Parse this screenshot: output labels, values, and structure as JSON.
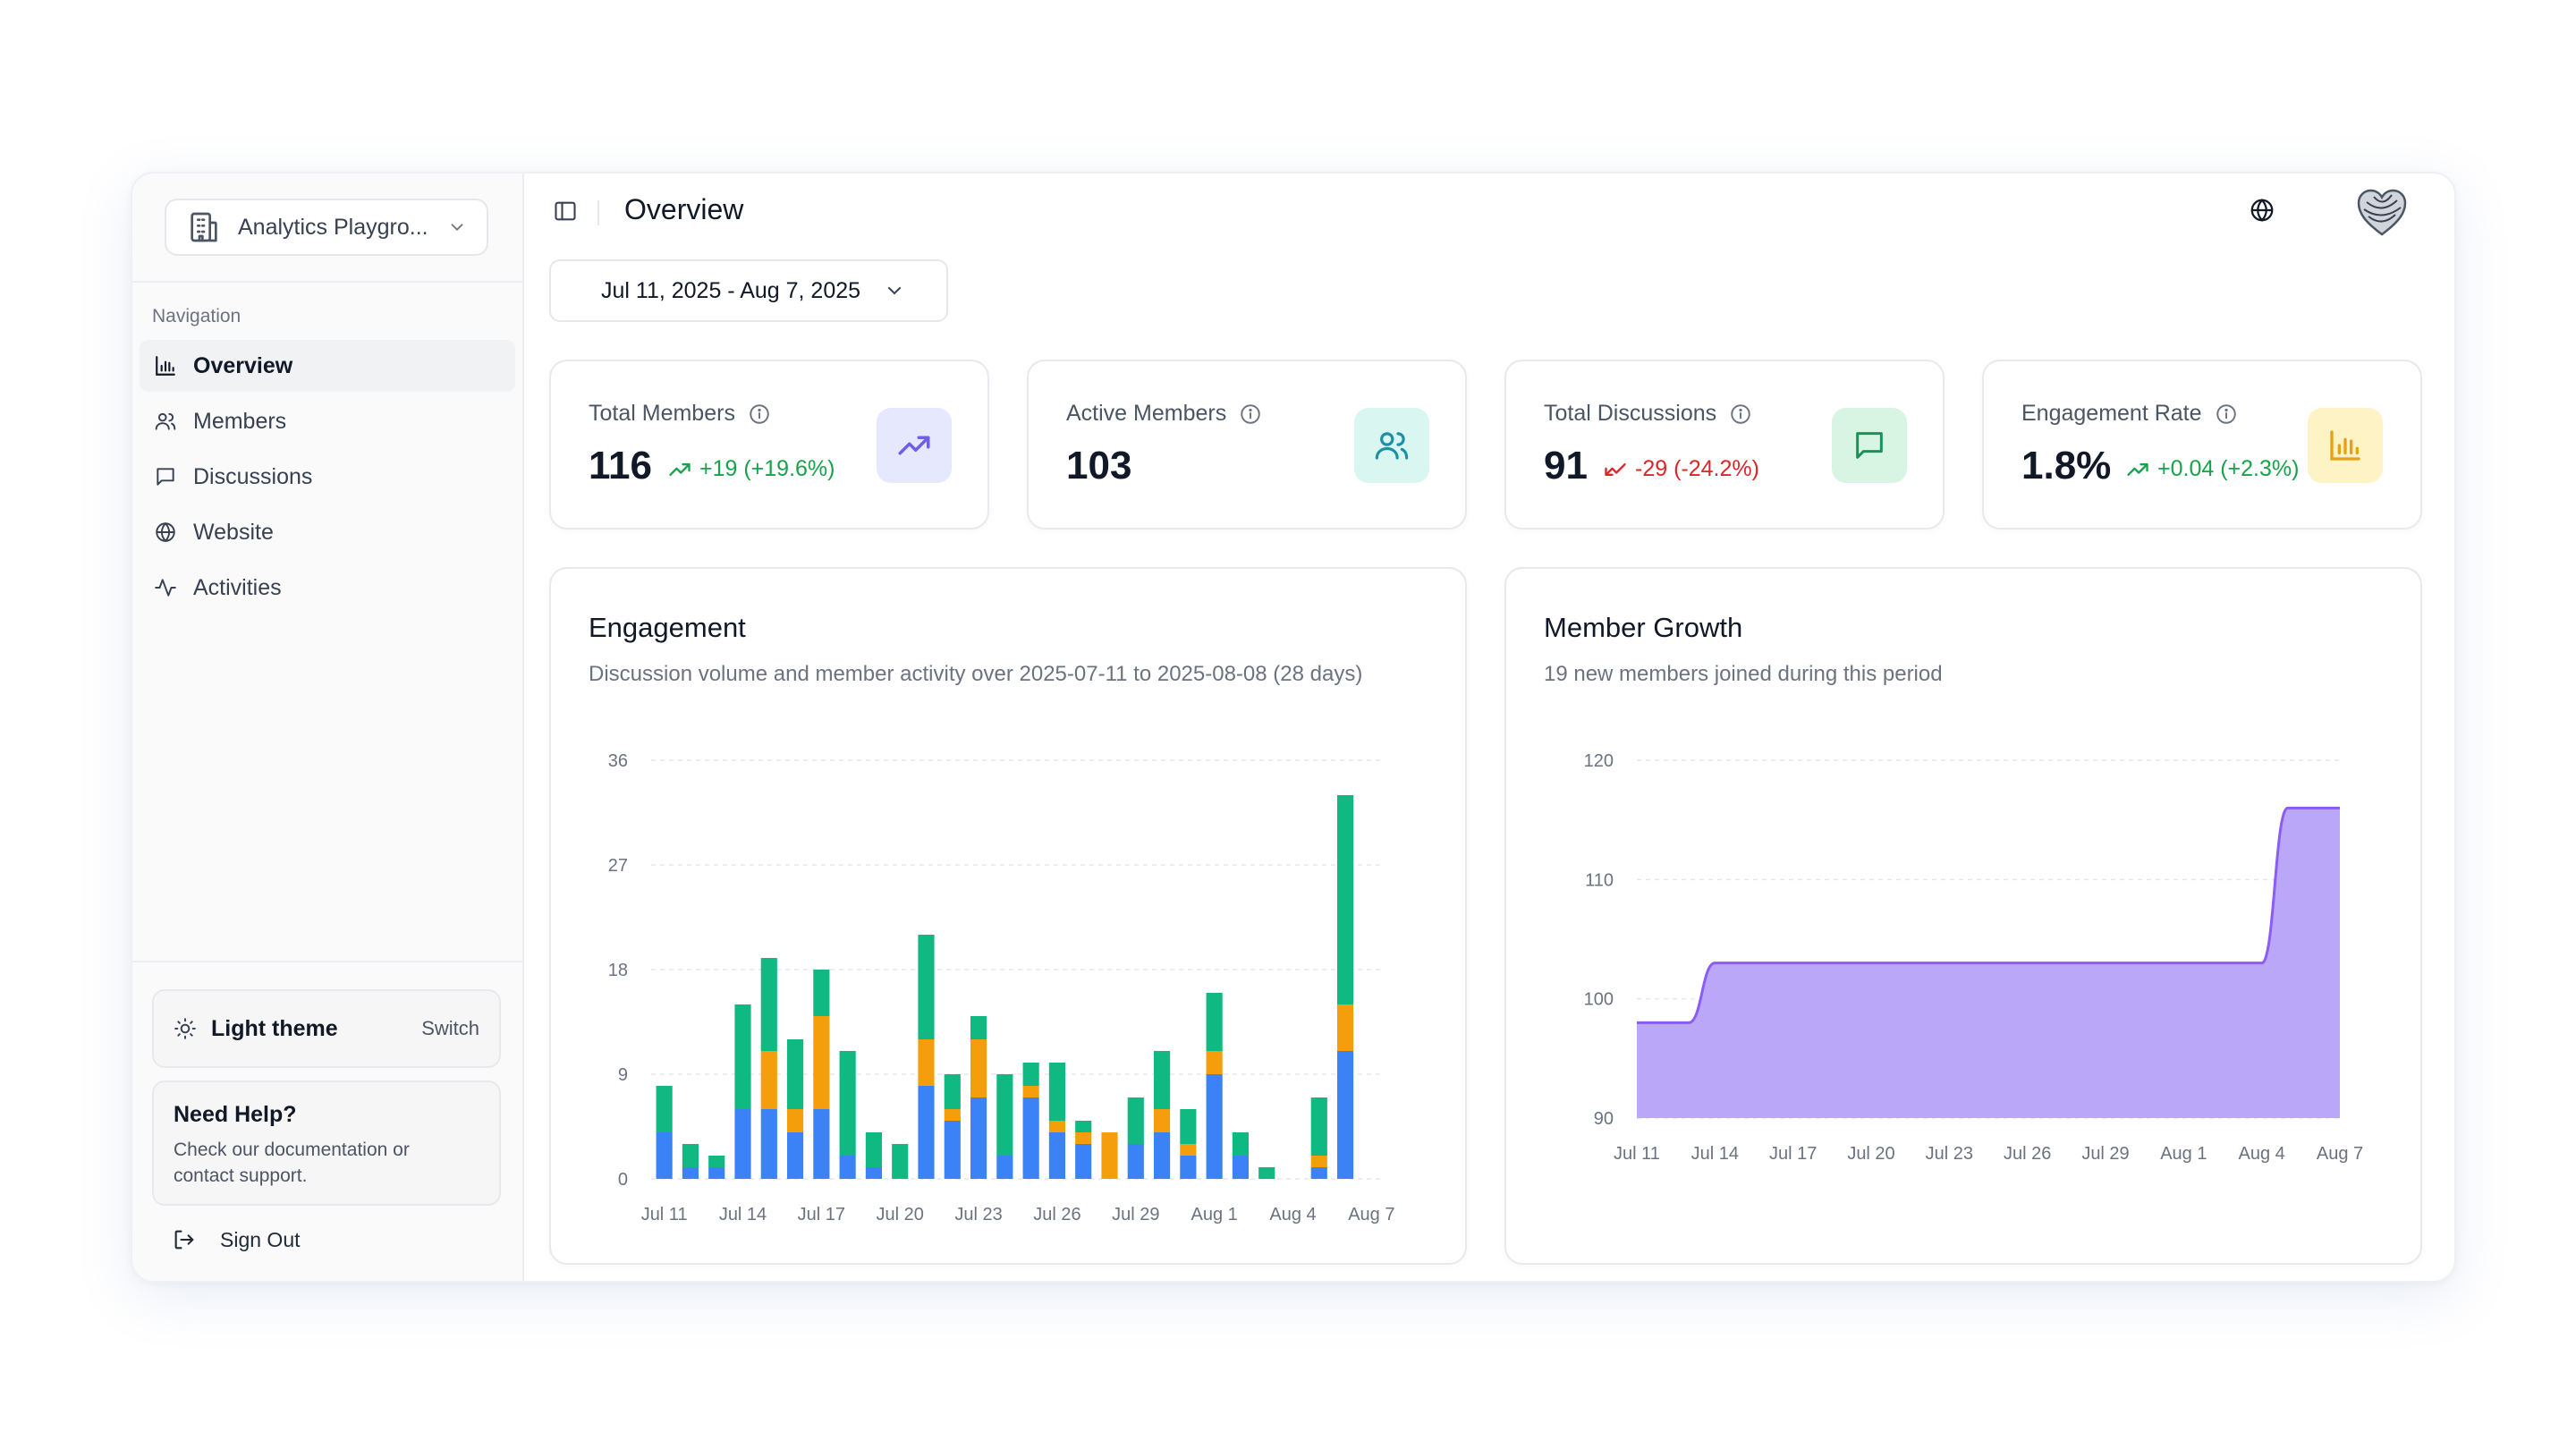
{
  "sidebar": {
    "workspace_name": "Analytics Playgro...",
    "nav_heading": "Navigation",
    "items": [
      {
        "label": "Overview",
        "icon": "bar-chart-icon",
        "active": true
      },
      {
        "label": "Members",
        "icon": "users-icon",
        "active": false
      },
      {
        "label": "Discussions",
        "icon": "message-square-icon",
        "active": false
      },
      {
        "label": "Website",
        "icon": "globe-icon",
        "active": false
      },
      {
        "label": "Activities",
        "icon": "activity-icon",
        "active": false
      }
    ],
    "theme": {
      "label": "Light theme",
      "switch_label": "Switch"
    },
    "help": {
      "title": "Need Help?",
      "text": "Check our documentation or contact support."
    },
    "signout_label": "Sign Out"
  },
  "header": {
    "title": "Overview"
  },
  "date_range": "Jul 11, 2025 - Aug 7, 2025",
  "stats": [
    {
      "label": "Total Members",
      "value": "116",
      "delta": "+19 (+19.6%)",
      "trend": "up",
      "icon": "trending-up-icon",
      "icon_bg": "#e6e8fd",
      "icon_color": "#6d5fe8"
    },
    {
      "label": "Active Members",
      "value": "103",
      "delta": "",
      "trend": "none",
      "icon": "users-icon",
      "icon_bg": "#d9f6f1",
      "icon_color": "#1f8fa6"
    },
    {
      "label": "Total Discussions",
      "value": "91",
      "delta": "-29 (-24.2%)",
      "trend": "down",
      "icon": "message-square-icon",
      "icon_bg": "#d8f5e3",
      "icon_color": "#15935a"
    },
    {
      "label": "Engagement Rate",
      "value": "1.8%",
      "delta": "+0.04 (+2.3%)",
      "trend": "up",
      "icon": "bar-chart-icon",
      "icon_bg": "#fdf3c4",
      "icon_color": "#e6a117"
    }
  ],
  "colors": {
    "up": "#16a34a",
    "down": "#dc2626",
    "blue": "#3b82f6",
    "orange": "#f59e0b",
    "green": "#10b981",
    "purple_fill": "#b7a2f8",
    "purple_line": "#8b5cf6"
  },
  "engagement": {
    "title": "Engagement",
    "subtitle": "Discussion volume and member activity over 2025-07-11 to 2025-08-08 (28 days)"
  },
  "growth": {
    "title": "Member Growth",
    "subtitle": "19 new members joined during this period"
  },
  "chart_data": [
    {
      "type": "bar",
      "stacked": true,
      "title": "Engagement",
      "ylim": [
        0,
        36
      ],
      "yticks": [
        0,
        9,
        18,
        27,
        36
      ],
      "xtick_labels": [
        "Jul 11",
        "Jul 14",
        "Jul 17",
        "Jul 20",
        "Jul 23",
        "Jul 26",
        "Jul 29",
        "Aug 1",
        "Aug 4",
        "Aug 7"
      ],
      "xtick_index": [
        0,
        3,
        6,
        9,
        12,
        15,
        18,
        21,
        24,
        27
      ],
      "categories": [
        "Jul 11",
        "Jul 12",
        "Jul 13",
        "Jul 14",
        "Jul 15",
        "Jul 16",
        "Jul 17",
        "Jul 18",
        "Jul 19",
        "Jul 20",
        "Jul 21",
        "Jul 22",
        "Jul 23",
        "Jul 24",
        "Jul 25",
        "Jul 26",
        "Jul 27",
        "Jul 28",
        "Jul 29",
        "Jul 30",
        "Jul 31",
        "Aug 1",
        "Aug 2",
        "Aug 3",
        "Aug 4",
        "Aug 5",
        "Aug 6",
        "Aug 7"
      ],
      "series": [
        {
          "color": "#3b82f6",
          "values": [
            4,
            1,
            1,
            6,
            6,
            4,
            6,
            2,
            1,
            0,
            8,
            5,
            7,
            2,
            7,
            4,
            3,
            0,
            3,
            4,
            2,
            9,
            2,
            0,
            0,
            1,
            11,
            0
          ]
        },
        {
          "color": "#f59e0b",
          "values": [
            0,
            0,
            0,
            0,
            5,
            2,
            8,
            0,
            0,
            0,
            4,
            1,
            5,
            0,
            1,
            1,
            1,
            4,
            0,
            2,
            1,
            2,
            0,
            0,
            0,
            1,
            4,
            0
          ]
        },
        {
          "color": "#10b981",
          "values": [
            4,
            2,
            1,
            9,
            8,
            6,
            4,
            9,
            3,
            3,
            9,
            3,
            2,
            7,
            2,
            5,
            1,
            0,
            4,
            5,
            3,
            5,
            2,
            1,
            0,
            5,
            18,
            0
          ]
        }
      ]
    },
    {
      "type": "area",
      "title": "Member Growth",
      "ylim": [
        90,
        120
      ],
      "yticks": [
        90,
        100,
        110,
        120
      ],
      "xtick_labels": [
        "Jul 11",
        "Jul 14",
        "Jul 17",
        "Jul 20",
        "Jul 23",
        "Jul 26",
        "Jul 29",
        "Aug 1",
        "Aug 4",
        "Aug 7"
      ],
      "xtick_index": [
        0,
        3,
        6,
        9,
        12,
        15,
        18,
        21,
        24,
        27
      ],
      "categories": [
        "Jul 11",
        "Jul 12",
        "Jul 13",
        "Jul 14",
        "Jul 15",
        "Jul 16",
        "Jul 17",
        "Jul 18",
        "Jul 19",
        "Jul 20",
        "Jul 21",
        "Jul 22",
        "Jul 23",
        "Jul 24",
        "Jul 25",
        "Jul 26",
        "Jul 27",
        "Jul 28",
        "Jul 29",
        "Jul 30",
        "Jul 31",
        "Aug 1",
        "Aug 2",
        "Aug 3",
        "Aug 4",
        "Aug 5",
        "Aug 6",
        "Aug 7"
      ],
      "values": [
        98,
        98,
        98,
        103,
        103,
        103,
        103,
        103,
        103,
        103,
        103,
        103,
        103,
        103,
        103,
        103,
        103,
        103,
        103,
        103,
        103,
        103,
        103,
        103,
        103,
        116,
        116,
        116
      ]
    }
  ]
}
